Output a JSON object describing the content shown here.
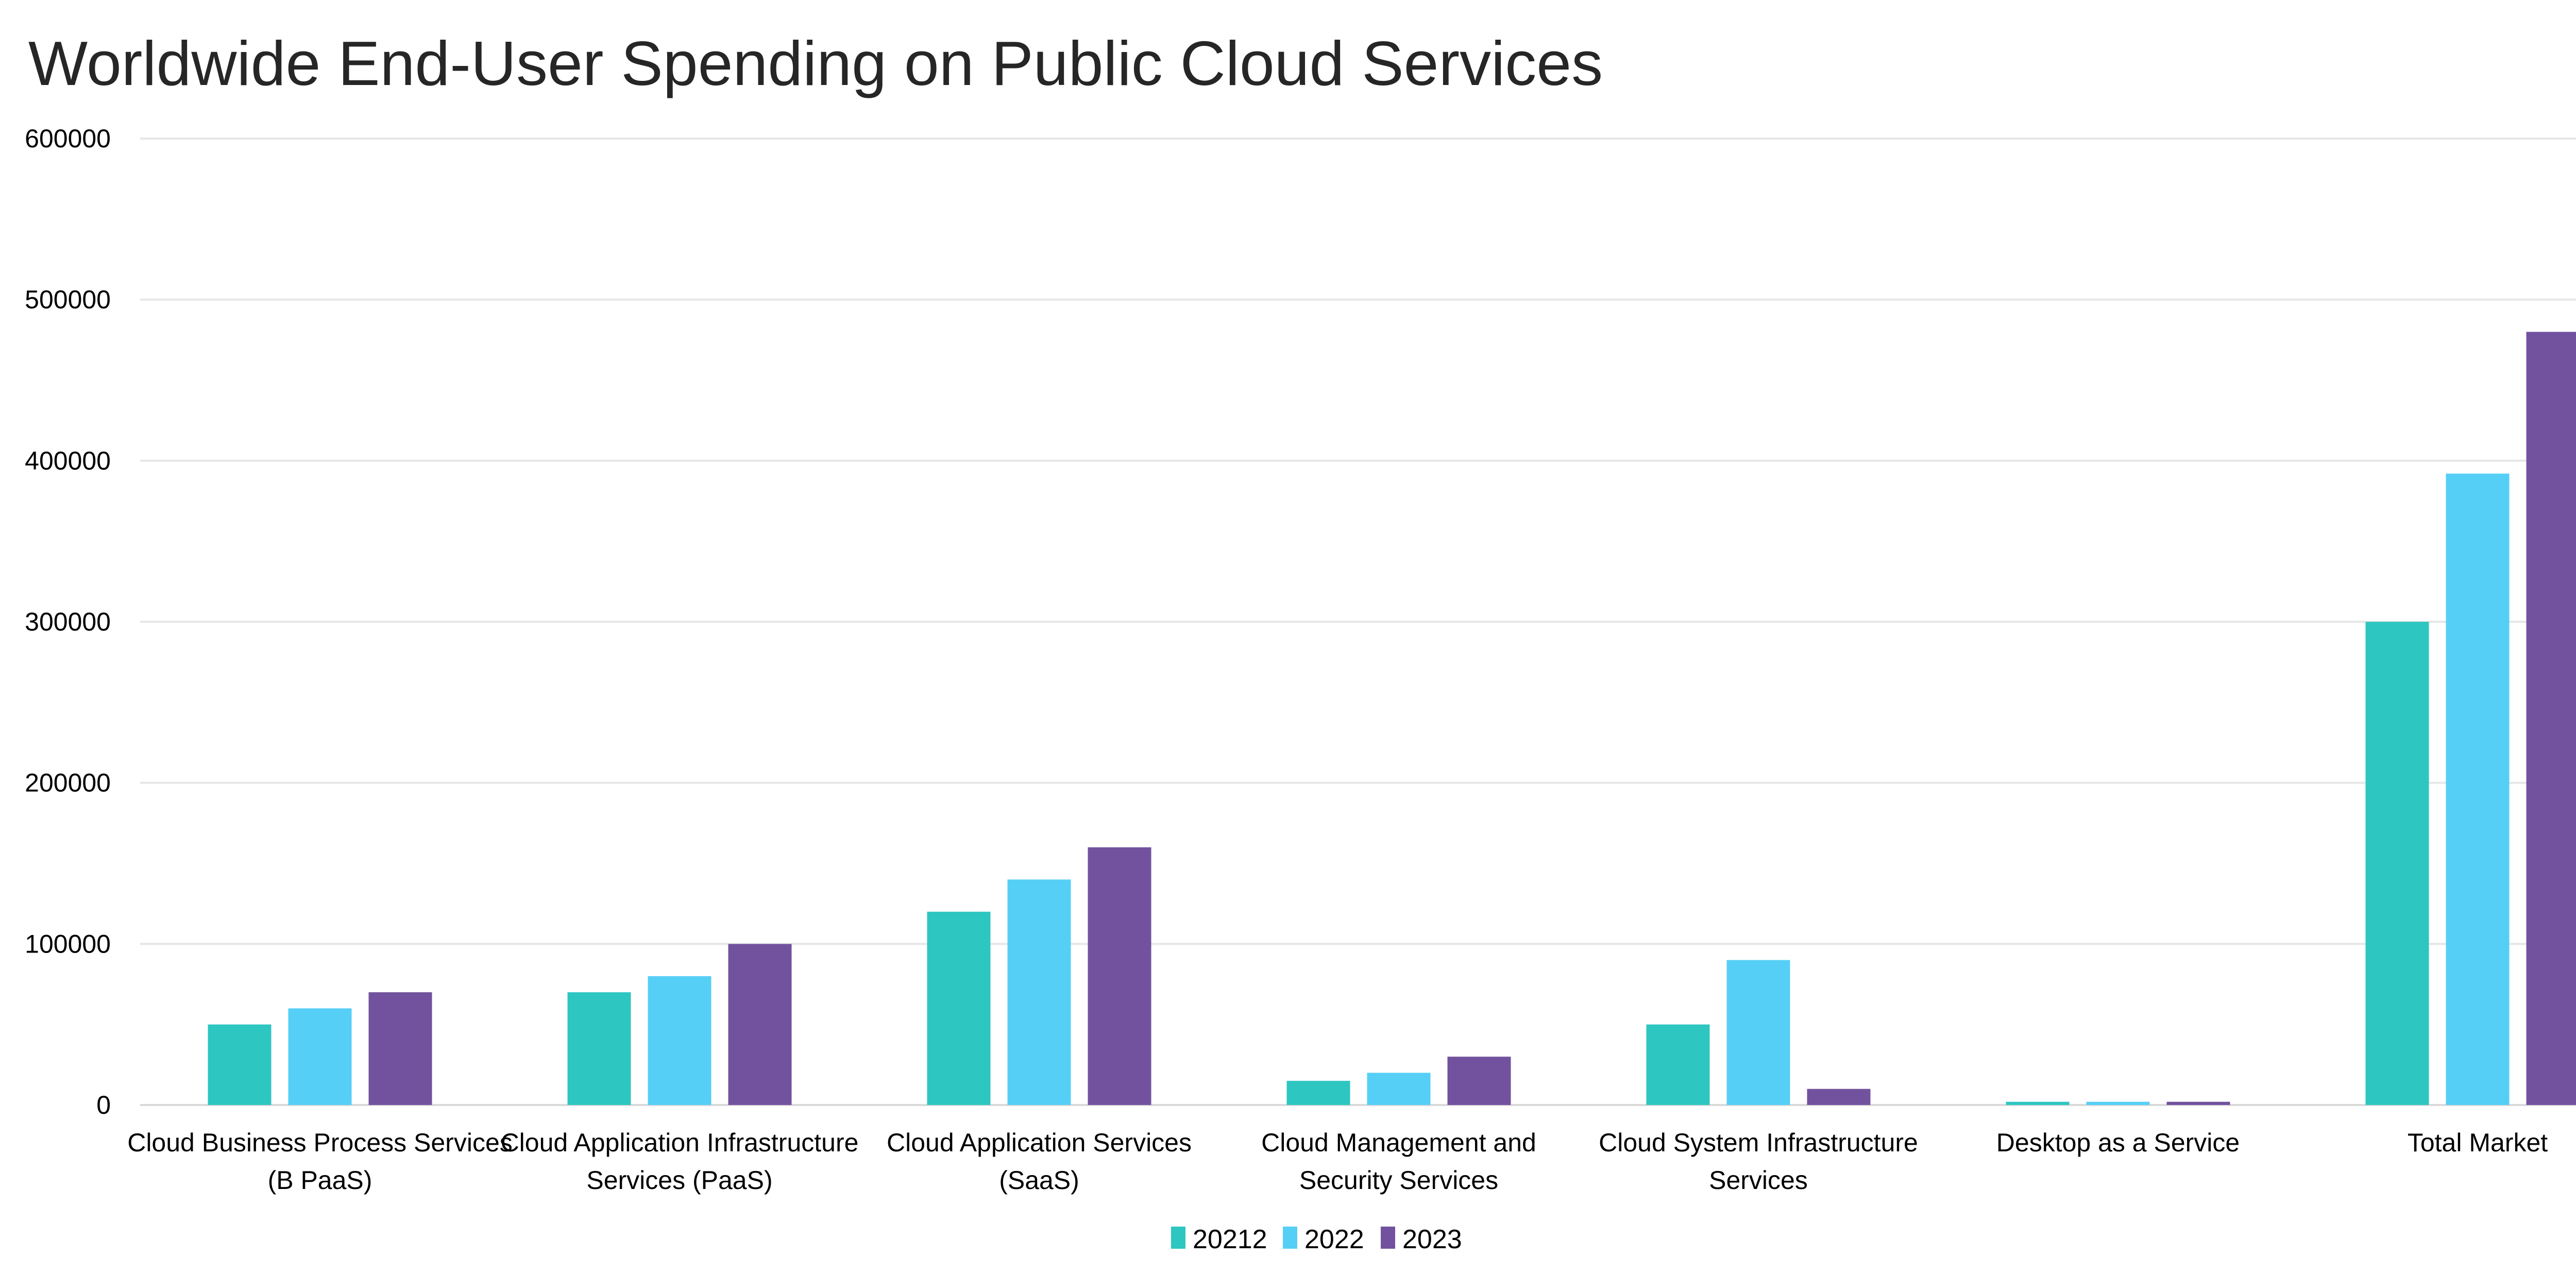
{
  "chart_data": {
    "type": "bar",
    "title": "Worldwide End-User Spending on Public Cloud Services",
    "xlabel": "",
    "ylabel": "",
    "ylim": [
      0,
      600000
    ],
    "yticks": [
      "0",
      "100000",
      "200000",
      "300000",
      "400000",
      "500000",
      "600000"
    ],
    "grid": true,
    "legend_position": "bottom",
    "categories": [
      [
        "Cloud Business Process Services",
        "(B PaaS)"
      ],
      [
        "Cloud Application Infrastructure",
        "Services (PaaS)"
      ],
      [
        "Cloud Application Services",
        "(SaaS)"
      ],
      [
        "Cloud Management and",
        "Security Services"
      ],
      [
        "Cloud System Infrastructure",
        "Services"
      ],
      [
        "Desktop as a Service"
      ],
      [
        "Total Market"
      ]
    ],
    "series": [
      {
        "name": "20212",
        "color": "#2EC6C1",
        "values": [
          50000,
          70000,
          120000,
          15000,
          50000,
          2000,
          300000
        ]
      },
      {
        "name": "2022",
        "color": "#56CFF7",
        "values": [
          60000,
          80000,
          140000,
          20000,
          90000,
          2000,
          392000
        ]
      },
      {
        "name": "2023",
        "color": "#72529E",
        "values": [
          70000,
          100000,
          160000,
          30000,
          10000,
          2000,
          480000
        ]
      }
    ]
  }
}
